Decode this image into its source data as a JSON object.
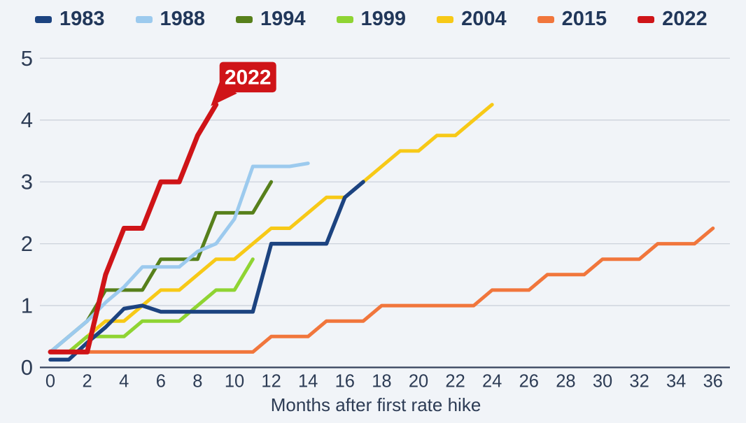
{
  "chart_data": {
    "type": "line",
    "title": "",
    "xlabel": "Months after first rate hike",
    "ylabel": "",
    "xlim": [
      0,
      36
    ],
    "ylim": [
      0,
      5
    ],
    "x_ticks": [
      0,
      2,
      4,
      6,
      8,
      10,
      12,
      14,
      16,
      18,
      20,
      22,
      24,
      26,
      28,
      30,
      32,
      34,
      36
    ],
    "y_ticks": [
      0,
      1,
      2,
      3,
      4,
      5
    ],
    "grid": "horizontal",
    "legend_position": "top",
    "annotation": {
      "label": "2022",
      "x": 9,
      "y": 4.25
    },
    "series": [
      {
        "name": "1983",
        "color": "#1c4380",
        "values": [
          0.125,
          0.125,
          0.4,
          0.65,
          0.95,
          1.0,
          0.9,
          0.9,
          0.9,
          0.9,
          0.9,
          0.9,
          2.0,
          2.0,
          2.0,
          2.0,
          2.75,
          3.0
        ]
      },
      {
        "name": "1988",
        "color": "#9ccaee",
        "values": [
          0.25,
          0.5,
          0.75,
          1.05,
          1.3,
          1.625,
          1.625,
          1.625,
          1.875,
          2.0,
          2.4,
          3.25,
          3.25,
          3.25,
          3.3
        ]
      },
      {
        "name": "1994",
        "color": "#57801b",
        "values": [
          0.25,
          0.5,
          0.75,
          1.25,
          1.25,
          1.25,
          1.75,
          1.75,
          1.75,
          2.5,
          2.5,
          2.5,
          3.0
        ]
      },
      {
        "name": "1999",
        "color": "#8fd433",
        "values": [
          0.25,
          0.25,
          0.5,
          0.5,
          0.5,
          0.75,
          0.75,
          0.75,
          1.0,
          1.25,
          1.25,
          1.75
        ]
      },
      {
        "name": "2004",
        "color": "#f7c917",
        "values": [
          0.25,
          0.25,
          0.5,
          0.75,
          0.75,
          1.0,
          1.25,
          1.25,
          1.5,
          1.75,
          1.75,
          2.0,
          2.25,
          2.25,
          2.5,
          2.75,
          2.75,
          3.0,
          3.25,
          3.5,
          3.5,
          3.75,
          3.75,
          4.0,
          4.25
        ]
      },
      {
        "name": "2015",
        "color": "#f1763c",
        "values": [
          0.25,
          0.25,
          0.25,
          0.25,
          0.25,
          0.25,
          0.25,
          0.25,
          0.25,
          0.25,
          0.25,
          0.25,
          0.5,
          0.5,
          0.5,
          0.75,
          0.75,
          0.75,
          1.0,
          1.0,
          1.0,
          1.0,
          1.0,
          1.0,
          1.25,
          1.25,
          1.25,
          1.5,
          1.5,
          1.5,
          1.75,
          1.75,
          1.75,
          2.0,
          2.0,
          2.0,
          2.25
        ]
      },
      {
        "name": "2022",
        "color": "#cf1418",
        "values": [
          0.25,
          0.25,
          0.25,
          1.5,
          2.25,
          2.25,
          3.0,
          3.0,
          3.75,
          4.25
        ]
      }
    ]
  },
  "appearance": {
    "background": "#f1f4f8",
    "gridline_color": "#ccd2db",
    "axis_line_color": "#35425c",
    "text_color": "#2d3c55",
    "callout_bg": "#cf1418",
    "callout_text_color": "#ffffff"
  }
}
